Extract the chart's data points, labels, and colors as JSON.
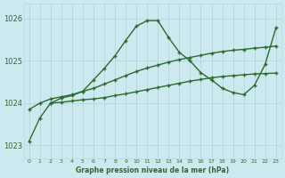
{
  "title": "Graphe pression niveau de la mer (hPa)",
  "background_color": "#cce9f0",
  "line_color": "#2d6a2d",
  "grid_color": "#b8d8e0",
  "xlim": [
    -0.5,
    23.5
  ],
  "ylim": [
    1022.7,
    1026.35
  ],
  "yticks": [
    1023,
    1024,
    1025,
    1026
  ],
  "xticks": [
    0,
    1,
    2,
    3,
    4,
    5,
    6,
    7,
    8,
    9,
    10,
    11,
    12,
    13,
    14,
    15,
    16,
    17,
    18,
    19,
    20,
    21,
    22,
    23
  ],
  "series1_x": [
    0,
    1,
    2,
    3,
    4,
    5,
    6,
    7,
    8,
    9,
    10,
    11,
    12,
    13,
    14,
    15,
    16,
    17,
    18,
    19,
    20,
    21,
    22,
    23
  ],
  "series1_y": [
    1023.1,
    1023.65,
    1024.0,
    1024.12,
    1024.18,
    1024.28,
    1024.55,
    1024.82,
    1025.12,
    1025.48,
    1025.82,
    1025.95,
    1025.95,
    1025.55,
    1025.2,
    1025.0,
    1024.72,
    1024.55,
    1024.35,
    1024.25,
    1024.2,
    1024.42,
    1024.92,
    1025.78
  ],
  "series2_x": [
    0,
    1,
    2,
    3,
    4,
    5,
    6,
    7,
    8,
    9,
    10,
    11,
    12,
    13,
    14,
    15,
    16,
    17,
    18,
    19,
    20,
    21,
    22,
    23
  ],
  "series2_y": [
    1023.85,
    1024.0,
    1024.1,
    1024.15,
    1024.2,
    1024.28,
    1024.35,
    1024.45,
    1024.55,
    1024.65,
    1024.75,
    1024.83,
    1024.9,
    1024.97,
    1025.03,
    1025.08,
    1025.13,
    1025.18,
    1025.22,
    1025.25,
    1025.27,
    1025.3,
    1025.32,
    1025.35
  ],
  "series3_x": [
    2,
    3,
    4,
    5,
    6,
    7,
    8,
    9,
    10,
    11,
    12,
    13,
    14,
    15,
    16,
    17,
    18,
    19,
    20,
    21,
    22,
    23
  ],
  "series3_y": [
    1024.0,
    1024.02,
    1024.05,
    1024.08,
    1024.1,
    1024.13,
    1024.18,
    1024.22,
    1024.27,
    1024.32,
    1024.37,
    1024.42,
    1024.47,
    1024.52,
    1024.56,
    1024.6,
    1024.63,
    1024.65,
    1024.67,
    1024.69,
    1024.7,
    1024.71
  ]
}
